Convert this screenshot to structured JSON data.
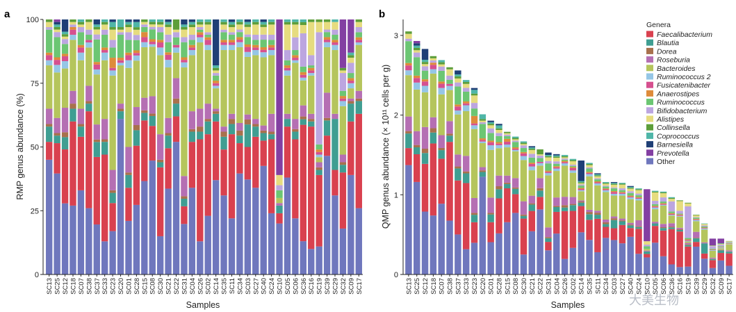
{
  "samples": [
    "SC13",
    "SC25",
    "SC12",
    "SC18",
    "SC07",
    "SC38",
    "SC37",
    "SC33",
    "SC23",
    "SC20",
    "SC01",
    "SC28",
    "SC15",
    "SC08",
    "SC30",
    "SC21",
    "SC22",
    "SC31",
    "SC04",
    "SC26",
    "SC02",
    "SC14",
    "SC35",
    "SC11",
    "SC34",
    "SC03",
    "SC27",
    "SC40",
    "SC24",
    "SC10",
    "SC05",
    "SC06",
    "SC36",
    "SC16",
    "SC19",
    "SC39",
    "SC29",
    "SC32",
    "SC09",
    "SC17"
  ],
  "genera_title": "Genera",
  "genera": [
    {
      "name": "Faecalibacterium",
      "color": "#d9414f"
    },
    {
      "name": "Blautia",
      "color": "#3f9e92"
    },
    {
      "name": "Dorea",
      "color": "#a8714d"
    },
    {
      "name": "Roseburia",
      "color": "#b56fb3"
    },
    {
      "name": "Bacteroides",
      "color": "#b5c55c"
    },
    {
      "name": "Ruminococcus 2",
      "color": "#95c6e6"
    },
    {
      "name": "Fusicatenibacter",
      "color": "#d6508f"
    },
    {
      "name": "Anaerostipes",
      "color": "#de8b3a"
    },
    {
      "name": "Ruminococcus",
      "color": "#6cc673"
    },
    {
      "name": "Bifidobacterium",
      "color": "#bca6e0"
    },
    {
      "name": "Alistipes",
      "color": "#e6dc7f"
    },
    {
      "name": "Collinsella",
      "color": "#5d9e3a"
    },
    {
      "name": "Coprococcus",
      "color": "#4fb6a8"
    },
    {
      "name": "Barnesiella",
      "color": "#1f3f76"
    },
    {
      "name": "Prevotella",
      "color": "#833fa2"
    },
    {
      "name": "Other",
      "color": "#6f77bd"
    }
  ],
  "watermark": "大美生物",
  "chart_data": [
    {
      "panel": "a",
      "type": "bar",
      "stacked": true,
      "title": "",
      "xlabel": "Samples",
      "ylabel": "RMP genus abundance (%)",
      "ylim": [
        0,
        100
      ],
      "yticks": [
        "0",
        "25",
        "50",
        "75",
        "100"
      ],
      "categories": [
        "SC13",
        "SC25",
        "SC12",
        "SC18",
        "SC07",
        "SC38",
        "SC37",
        "SC33",
        "SC23",
        "SC20",
        "SC01",
        "SC28",
        "SC15",
        "SC08",
        "SC30",
        "SC21",
        "SC22",
        "SC31",
        "SC04",
        "SC26",
        "SC02",
        "SC14",
        "SC35",
        "SC11",
        "SC34",
        "SC03",
        "SC27",
        "SC40",
        "SC24",
        "SC10",
        "SC05",
        "SC06",
        "SC36",
        "SC16",
        "SC19",
        "SC39",
        "SC29",
        "SC32",
        "SC09",
        "SC17"
      ],
      "series": [
        {
          "name": "Other",
          "values": [
            45,
            40,
            29,
            27,
            33,
            26,
            20,
            13,
            17,
            61,
            21,
            27,
            37,
            46,
            15,
            34,
            52,
            20,
            34,
            13,
            23,
            37,
            31,
            22,
            40,
            38,
            34,
            43,
            24,
            20,
            38,
            22,
            12,
            10,
            11,
            47,
            31,
            18,
            39,
            26
          ]
        },
        {
          "name": "Faecalibacterium",
          "values": [
            7,
            12,
            22,
            33,
            21,
            38,
            27,
            34,
            11,
            0,
            13,
            23,
            24,
            14,
            27,
            16,
            10,
            7,
            18,
            40,
            32,
            23,
            18,
            33,
            12,
            13,
            20,
            10,
            29,
            4,
            20,
            31,
            42,
            48,
            28,
            8,
            10,
            22,
            21,
            37
          ]
        },
        {
          "name": "Blautia",
          "values": [
            6,
            3,
            5,
            5,
            4,
            3,
            6,
            5,
            4,
            3,
            5,
            6,
            3,
            4,
            2,
            5,
            5,
            3,
            4,
            3,
            5,
            3,
            5,
            4,
            3,
            9,
            4,
            3,
            2,
            3,
            3,
            3,
            2,
            2,
            2,
            6,
            20,
            3,
            7,
            5
          ]
        },
        {
          "name": "Dorea",
          "values": [
            1,
            1,
            2,
            2,
            1,
            1,
            1,
            1,
            1,
            1,
            1,
            2,
            1,
            1,
            1,
            1,
            2,
            1,
            1,
            2,
            1,
            1,
            2,
            2,
            2,
            2,
            1,
            1,
            1,
            0,
            0,
            1,
            1,
            1,
            1,
            1,
            0,
            1,
            1,
            1
          ]
        },
        {
          "name": "Roseburia",
          "values": [
            6,
            6,
            10,
            5,
            6,
            6,
            6,
            8,
            8,
            2,
            10,
            7,
            5,
            7,
            10,
            6,
            8,
            8,
            7,
            7,
            6,
            1,
            2,
            2,
            3,
            2,
            2,
            2,
            7,
            1,
            2,
            4,
            4,
            2,
            2,
            10,
            2,
            3,
            1,
            3
          ]
        },
        {
          "name": "Bacteroides",
          "values": [
            17,
            18,
            16,
            20,
            19,
            15,
            20,
            23,
            37,
            15,
            31,
            18,
            20,
            20,
            31,
            20,
            10,
            43,
            22,
            26,
            21,
            8,
            30,
            25,
            30,
            23,
            25,
            27,
            23,
            2,
            15,
            22,
            9,
            15,
            2,
            18,
            25,
            19,
            4,
            18
          ]
        },
        {
          "name": "Ruminococcus 2",
          "values": [
            2,
            3,
            3,
            2,
            3,
            2,
            2,
            3,
            2,
            1,
            3,
            2,
            2,
            1,
            3,
            3,
            2,
            2,
            2,
            2,
            2,
            1,
            2,
            2,
            2,
            2,
            2,
            2,
            2,
            0,
            2,
            1,
            1,
            1,
            1,
            2,
            2,
            2,
            2,
            1
          ]
        },
        {
          "name": "Fusicatenibacter",
          "values": [
            2,
            2,
            2,
            2,
            2,
            1,
            2,
            1,
            1,
            1,
            2,
            1,
            2,
            1,
            2,
            2,
            1,
            1,
            1,
            1,
            2,
            1,
            1,
            1,
            1,
            2,
            1,
            1,
            1,
            0,
            1,
            1,
            1,
            1,
            1,
            1,
            1,
            1,
            1,
            1
          ]
        },
        {
          "name": "Anaerostipes",
          "values": [
            1,
            1,
            1,
            1,
            1,
            0,
            1,
            1,
            4,
            1,
            1,
            1,
            2,
            1,
            1,
            1,
            0,
            1,
            1,
            1,
            1,
            1,
            1,
            1,
            1,
            1,
            1,
            1,
            1,
            0,
            1,
            1,
            1,
            1,
            1,
            1,
            1,
            1,
            1,
            1
          ]
        },
        {
          "name": "Ruminococcus",
          "values": [
            9,
            8,
            4,
            0,
            5,
            2,
            9,
            5,
            4,
            9,
            5,
            4,
            2,
            4,
            3,
            4,
            3,
            6,
            2,
            1,
            1,
            2,
            3,
            2,
            2,
            3,
            2,
            3,
            2,
            3,
            2,
            2,
            2,
            1,
            2,
            2,
            2,
            2,
            2,
            2
          ]
        },
        {
          "name": "Bifidobacterium",
          "values": [
            1,
            2,
            2,
            1,
            2,
            2,
            2,
            2,
            3,
            1,
            3,
            2,
            1,
            1,
            2,
            3,
            2,
            2,
            2,
            1,
            1,
            1,
            1,
            1,
            1,
            1,
            2,
            2,
            2,
            2,
            4,
            5,
            12,
            4,
            44,
            1,
            2,
            7,
            4,
            2
          ]
        },
        {
          "name": "Alistipes",
          "values": [
            2,
            1,
            1,
            1,
            1,
            3,
            2,
            2,
            4,
            1,
            2,
            2,
            1,
            1,
            1,
            3,
            1,
            3,
            3,
            1,
            3,
            1,
            2,
            2,
            2,
            3,
            4,
            3,
            4,
            4,
            10,
            5,
            3,
            13,
            4,
            3,
            3,
            1,
            2,
            2
          ]
        },
        {
          "name": "Collinsella",
          "values": [
            1,
            1,
            1,
            1,
            1,
            1,
            1,
            1,
            1,
            1,
            1,
            1,
            1,
            1,
            1,
            1,
            4,
            1,
            1,
            1,
            1,
            1,
            1,
            1,
            1,
            1,
            1,
            1,
            1,
            0,
            1,
            1,
            1,
            1,
            1,
            1,
            0,
            1,
            1,
            1
          ]
        },
        {
          "name": "Coprococcus",
          "values": [
            0,
            1,
            1,
            0,
            1,
            0,
            1,
            1,
            2,
            3,
            1,
            2,
            0,
            1,
            1,
            1,
            0,
            1,
            1,
            1,
            1,
            1,
            1,
            1,
            1,
            1,
            1,
            1,
            1,
            0,
            1,
            1,
            1,
            0,
            0,
            0,
            1,
            0,
            1,
            0
          ]
        },
        {
          "name": "Barnesiella",
          "values": [
            0,
            1,
            5,
            0,
            0,
            0,
            2,
            0,
            1,
            0,
            1,
            1,
            0,
            0,
            0,
            1,
            0,
            2,
            1,
            0,
            0,
            18,
            0,
            1,
            0,
            1,
            0,
            1,
            0,
            0,
            0,
            0,
            0,
            0,
            0,
            0,
            0,
            0,
            0,
            0
          ]
        },
        {
          "name": "Prevotella",
          "values": [
            0,
            1,
            0,
            0,
            0,
            0,
            0,
            0,
            0,
            0,
            0,
            0,
            0,
            0,
            0,
            0,
            0,
            0,
            0,
            0,
            0,
            0,
            0,
            0,
            0,
            0,
            0,
            0,
            0,
            61,
            0,
            0,
            0,
            0,
            0,
            0,
            0,
            19,
            13,
            0
          ]
        }
      ]
    },
    {
      "panel": "b",
      "type": "bar",
      "stacked": true,
      "title": "",
      "xlabel": "Samples",
      "ylabel": "QMP genus abundance (× 10¹¹ cells per g)",
      "ylim": [
        0,
        3.2
      ],
      "yticks": [
        "0",
        "1",
        "2",
        "3"
      ],
      "legend": "top-right",
      "categories": [
        "SC13",
        "SC25",
        "SC12",
        "SC18",
        "SC07",
        "SC38",
        "SC37",
        "SC33",
        "SC23",
        "SC20",
        "SC01",
        "SC28",
        "SC15",
        "SC08",
        "SC30",
        "SC21",
        "SC22",
        "SC31",
        "SC04",
        "SC26",
        "SC02",
        "SC14",
        "SC35",
        "SC11",
        "SC34",
        "SC03",
        "SC27",
        "SC40",
        "SC24",
        "SC10",
        "SC05",
        "SC06",
        "SC36",
        "SC16",
        "SC19",
        "SC39",
        "SC29",
        "SC32",
        "SC09",
        "SC17"
      ],
      "totals": [
        3.05,
        2.93,
        2.83,
        2.74,
        2.69,
        2.6,
        2.56,
        2.44,
        2.34,
        2.01,
        1.93,
        1.89,
        1.79,
        1.73,
        1.67,
        1.61,
        1.57,
        1.53,
        1.51,
        1.5,
        1.45,
        1.43,
        1.4,
        1.27,
        1.16,
        1.16,
        1.15,
        1.11,
        1.08,
        1.07,
        1.05,
        1.04,
        0.97,
        0.93,
        0.9,
        0.75,
        0.64,
        0.45,
        0.45,
        0.42
      ]
    }
  ]
}
